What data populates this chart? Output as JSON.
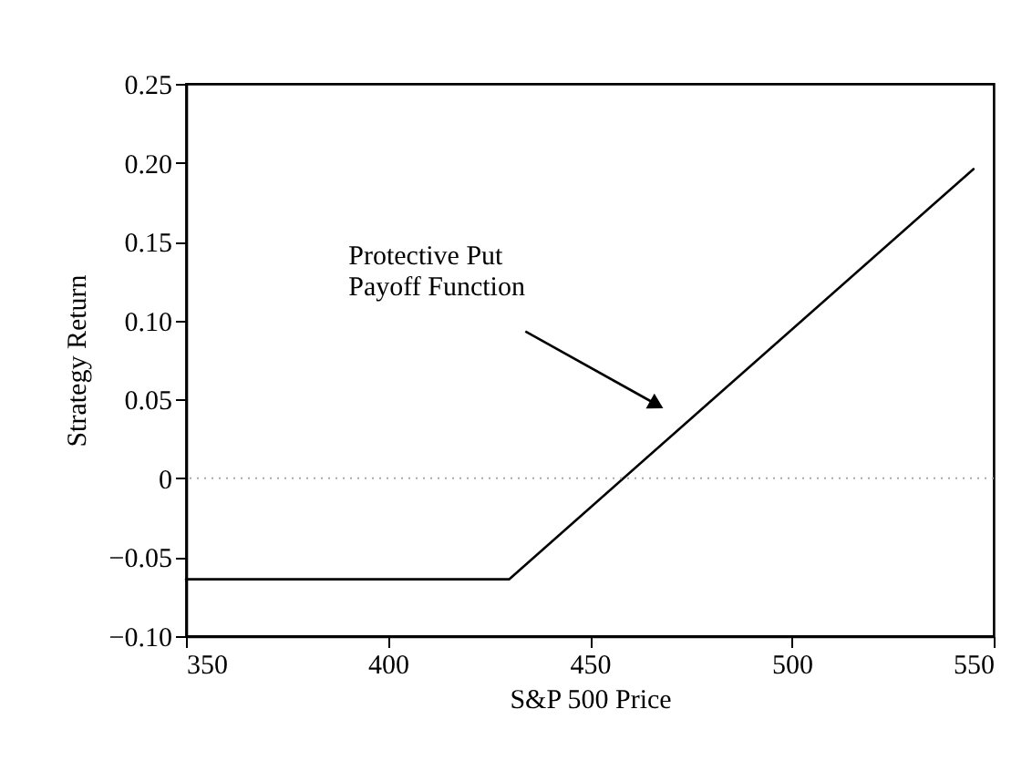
{
  "chart_data": {
    "type": "line",
    "xlabel": "S&P 500 Price",
    "ylabel": "Strategy Return",
    "x": [
      350,
      430,
      545
    ],
    "series": [
      {
        "color": "#000000",
        "values": [
          -0.064,
          -0.064,
          0.196
        ]
      }
    ],
    "xlim": [
      350,
      550
    ],
    "xticks": [
      350,
      400,
      450,
      500,
      550
    ],
    "ylim": [
      -0.1,
      0.25
    ],
    "yticks": [
      {
        "value": -0.1,
        "label": "−0.10"
      },
      {
        "value": -0.05,
        "label": "−0.05"
      },
      {
        "value": 0,
        "label": "0"
      },
      {
        "value": 0.05,
        "label": "0.05"
      },
      {
        "value": 0.1,
        "label": "0.10"
      },
      {
        "value": 0.15,
        "label": "0.15"
      },
      {
        "value": 0.2,
        "label": "0.20"
      },
      {
        "value": 0.25,
        "label": "0.25"
      }
    ],
    "ref_lines": [
      {
        "axis": "y",
        "value": 0,
        "color": "#aaaaaa",
        "line_style": "dotted"
      }
    ],
    "annotations": [
      "Protective Put\nPayoff Function"
    ],
    "grid": false,
    "marker": "none",
    "line_style": "solid"
  }
}
